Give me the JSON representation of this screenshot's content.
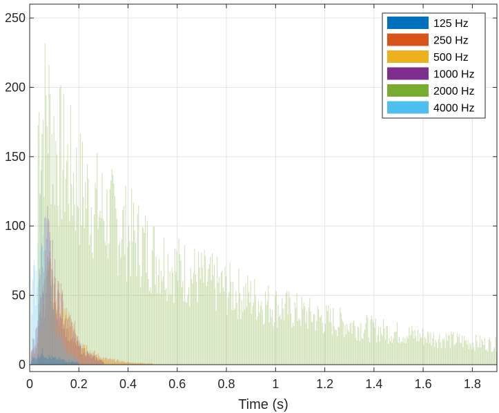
{
  "chart_data": {
    "type": "bar",
    "title": "",
    "xlabel": "Time (s)",
    "ylabel": "",
    "xlim": [
      0,
      1.9
    ],
    "ylim": [
      -5,
      260
    ],
    "xticks": [
      0,
      0.2,
      0.4,
      0.6,
      0.8,
      1,
      1.2,
      1.4,
      1.6,
      1.8
    ],
    "xtick_labels": [
      "0",
      "0.2",
      "0.4",
      "0.6",
      "0.8",
      "1",
      "1.2",
      "1.4",
      "1.6",
      "1.8"
    ],
    "yticks": [
      0,
      50,
      100,
      150,
      200,
      250
    ],
    "ytick_labels": [
      "0",
      "50",
      "100",
      "150",
      "200",
      "250"
    ],
    "grid": true,
    "legend_position": "top-right",
    "series": [
      {
        "name": "125 Hz",
        "color": "#0072BD",
        "x": [
          0.02,
          0.05,
          0.07,
          0.1,
          0.15,
          0.2
        ],
        "values": [
          6,
          12,
          8,
          6,
          4,
          2
        ]
      },
      {
        "name": "250 Hz",
        "color": "#D95319",
        "x": [
          0.02,
          0.05,
          0.07,
          0.1,
          0.15,
          0.2,
          0.25,
          0.3,
          0.4,
          0.5
        ],
        "values": [
          15,
          60,
          90,
          70,
          45,
          25,
          12,
          6,
          2,
          1
        ]
      },
      {
        "name": "500 Hz",
        "color": "#EDB120",
        "x": [
          0.02,
          0.05,
          0.07,
          0.1,
          0.15,
          0.2,
          0.25,
          0.3,
          0.4,
          0.5
        ],
        "values": [
          12,
          55,
          85,
          65,
          40,
          20,
          10,
          5,
          2,
          1
        ]
      },
      {
        "name": "1000 Hz",
        "color": "#7E2F8E",
        "x": [
          0.02,
          0.05,
          0.07,
          0.1,
          0.15,
          0.2,
          0.25,
          0.3
        ],
        "values": [
          20,
          110,
          120,
          80,
          40,
          18,
          8,
          3
        ]
      },
      {
        "name": "2000 Hz",
        "color": "#77AC30",
        "x": [
          0.05,
          0.07,
          0.1,
          0.2,
          0.3,
          0.4,
          0.5,
          0.6,
          0.8,
          1.0,
          1.2,
          1.4,
          1.6,
          1.8,
          1.9
        ],
        "values": [
          240,
          255,
          215,
          175,
          150,
          130,
          110,
          95,
          75,
          58,
          45,
          35,
          28,
          22,
          20
        ]
      },
      {
        "name": "4000 Hz",
        "color": "#4DBEEE",
        "x": [
          0.02,
          0.05,
          0.07,
          0.1,
          0.15,
          0.2
        ],
        "values": [
          80,
          160,
          110,
          40,
          12,
          4
        ]
      }
    ]
  }
}
